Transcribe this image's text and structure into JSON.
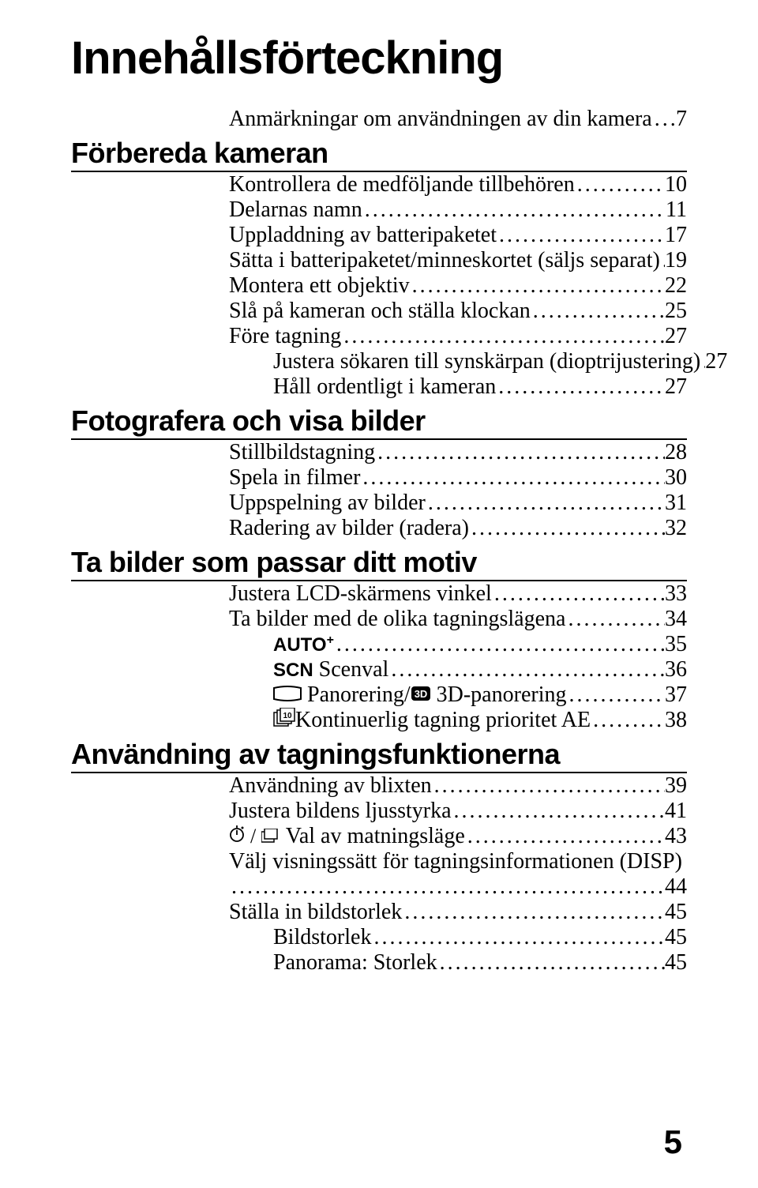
{
  "title": "Innehållsförteckning",
  "intro": {
    "label": "Anmärkningar om användningen av din kamera",
    "page": "7"
  },
  "sections": [
    {
      "heading": "Förbereda kameran",
      "entries": [
        {
          "label": "Kontrollera de medföljande tillbehören",
          "page": "10",
          "indent": false
        },
        {
          "label": "Delarnas namn",
          "page": "11",
          "indent": false
        },
        {
          "label": "Uppladdning av batteripaketet",
          "page": "17",
          "indent": false
        },
        {
          "label": "Sätta i batteripaketet/minneskortet (säljs separat)",
          "page": "19",
          "indent": false
        },
        {
          "label": "Montera ett objektiv",
          "page": "22",
          "indent": false
        },
        {
          "label": "Slå på kameran och ställa klockan",
          "page": "25",
          "indent": false
        },
        {
          "label": "Före tagning",
          "page": "27",
          "indent": false
        },
        {
          "label": "Justera sökaren till synskärpan (dioptrijustering)",
          "page": "27",
          "indent": true
        },
        {
          "label": "Håll ordentligt i kameran",
          "page": "27",
          "indent": true
        }
      ]
    },
    {
      "heading": "Fotografera och visa bilder",
      "entries": [
        {
          "label": "Stillbildstagning",
          "page": "28",
          "indent": false
        },
        {
          "label": "Spela in filmer",
          "page": "30",
          "indent": false
        },
        {
          "label": "Uppspelning av bilder",
          "page": "31",
          "indent": false
        },
        {
          "label": "Radering av bilder (radera)",
          "page": "32",
          "indent": false
        }
      ]
    },
    {
      "heading": "Ta bilder som passar ditt motiv",
      "entries": [
        {
          "label": "Justera LCD-skärmens vinkel",
          "page": "33",
          "indent": false
        },
        {
          "label": "Ta bilder med de olika tagningslägena",
          "page": "34",
          "indent": false
        },
        {
          "label": "",
          "page": "35",
          "indent": true,
          "icon": "auto-plus"
        },
        {
          "label": " Scenval",
          "page": "36",
          "indent": true,
          "icon": "scn"
        },
        {
          "label": " 3D-panorering",
          "prefix": " Panorering/",
          "page": "37",
          "indent": true,
          "icon": "panorama"
        },
        {
          "label": "Kontinuerlig tagning prioritet AE",
          "page": "38",
          "indent": true,
          "icon": "continuous"
        }
      ]
    },
    {
      "heading": "Användning av tagningsfunktionerna",
      "entries": [
        {
          "label": "Användning av blixten",
          "page": "39",
          "indent": false
        },
        {
          "label": "Justera bildens ljusstyrka",
          "page": "41",
          "indent": false
        },
        {
          "label": " Val av matningsläge",
          "page": "43",
          "indent": false,
          "icon": "drive"
        },
        {
          "label_line1": "Välj visningssätt för tagningsinformationen (DISP)",
          "page": "44",
          "indent": false,
          "wrap": true
        },
        {
          "label": "Ställa in bildstorlek",
          "page": "45",
          "indent": false
        },
        {
          "label": "Bildstorlek",
          "page": "45",
          "indent": true
        },
        {
          "label": "Panorama: Storlek",
          "page": "45",
          "indent": true
        }
      ]
    }
  ],
  "page_number": "5",
  "icons": {
    "auto_plus": "AUTO",
    "scn": "SCN"
  }
}
